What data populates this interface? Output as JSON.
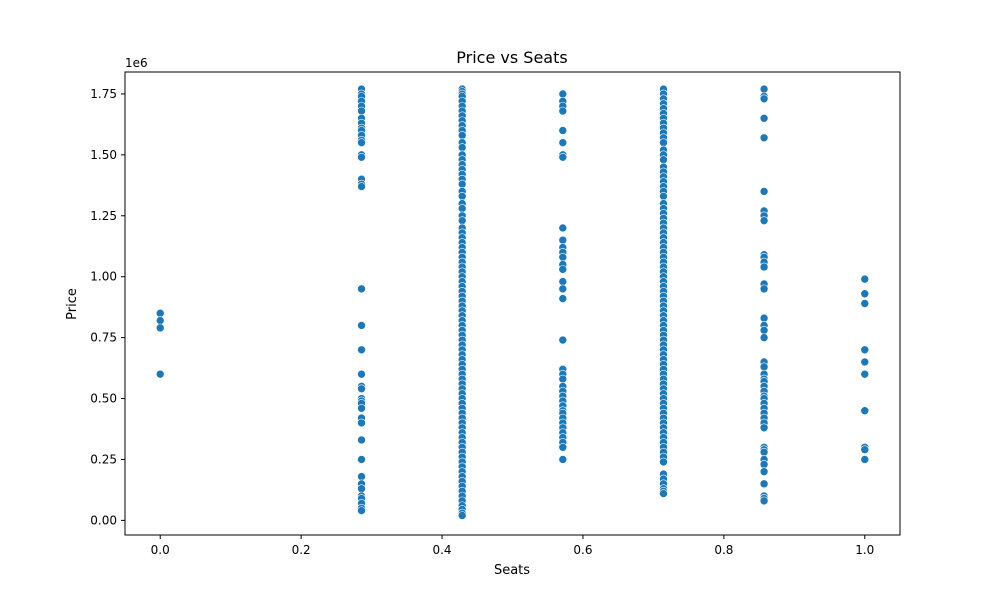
{
  "chart_data": {
    "type": "scatter",
    "title": "Price vs Seats",
    "xlabel": "Seats",
    "ylabel": "Price",
    "y_offset_label": "1e6",
    "xlim": [
      -0.05,
      1.05
    ],
    "ylim": [
      -60000,
      1840000
    ],
    "x_ticks": [
      0.0,
      0.2,
      0.4,
      0.6,
      0.8,
      1.0
    ],
    "x_tick_labels": [
      "0.0",
      "0.2",
      "0.4",
      "0.6",
      "0.8",
      "1.0"
    ],
    "y_ticks": [
      0,
      250000,
      500000,
      750000,
      1000000,
      1250000,
      1500000,
      1750000
    ],
    "y_tick_labels": [
      "0.00",
      "0.25",
      "0.50",
      "0.75",
      "1.00",
      "1.25",
      "1.50",
      "1.75"
    ],
    "grid": false,
    "marker_color": "#1f77b4",
    "series": [
      {
        "x": 0.0,
        "y": [
          850000,
          820000,
          790000,
          600000
        ]
      },
      {
        "x": 0.2857,
        "y": [
          1770000,
          1750000,
          1740000,
          1720000,
          1700000,
          1680000,
          1650000,
          1630000,
          1610000,
          1600000,
          1580000,
          1560000,
          1550000,
          1500000,
          1490000,
          1400000,
          1380000,
          1370000,
          950000,
          800000,
          700000,
          600000,
          550000,
          540000,
          500000,
          490000,
          480000,
          460000,
          420000,
          400000,
          330000,
          250000,
          180000,
          150000,
          130000,
          100000,
          90000,
          70000,
          50000,
          40000
        ]
      },
      {
        "x": 0.4286,
        "y": [
          1770000,
          1760000,
          1750000,
          1740000,
          1720000,
          1700000,
          1680000,
          1660000,
          1640000,
          1620000,
          1600000,
          1580000,
          1550000,
          1530000,
          1500000,
          1480000,
          1460000,
          1440000,
          1420000,
          1400000,
          1380000,
          1350000,
          1330000,
          1300000,
          1280000,
          1250000,
          1230000,
          1200000,
          1180000,
          1160000,
          1140000,
          1120000,
          1100000,
          1080000,
          1060000,
          1040000,
          1020000,
          1000000,
          980000,
          960000,
          940000,
          920000,
          900000,
          880000,
          860000,
          840000,
          820000,
          800000,
          780000,
          760000,
          740000,
          720000,
          700000,
          680000,
          660000,
          640000,
          620000,
          600000,
          580000,
          560000,
          540000,
          520000,
          500000,
          480000,
          460000,
          440000,
          420000,
          400000,
          380000,
          360000,
          340000,
          320000,
          300000,
          280000,
          260000,
          240000,
          220000,
          200000,
          180000,
          160000,
          140000,
          120000,
          100000,
          80000,
          60000,
          45000,
          30000,
          20000
        ]
      },
      {
        "x": 0.5714,
        "y": [
          1750000,
          1720000,
          1700000,
          1680000,
          1600000,
          1550000,
          1500000,
          1490000,
          1200000,
          1150000,
          1120000,
          1100000,
          1080000,
          1050000,
          1030000,
          980000,
          950000,
          910000,
          740000,
          620000,
          600000,
          580000,
          550000,
          530000,
          510000,
          490000,
          470000,
          450000,
          440000,
          420000,
          400000,
          380000,
          360000,
          340000,
          320000,
          300000,
          250000
        ]
      },
      {
        "x": 0.7143,
        "y": [
          1770000,
          1750000,
          1730000,
          1710000,
          1690000,
          1670000,
          1650000,
          1630000,
          1610000,
          1590000,
          1570000,
          1550000,
          1520000,
          1500000,
          1480000,
          1450000,
          1430000,
          1410000,
          1390000,
          1370000,
          1350000,
          1330000,
          1300000,
          1280000,
          1260000,
          1240000,
          1220000,
          1200000,
          1180000,
          1160000,
          1140000,
          1120000,
          1100000,
          1080000,
          1060000,
          1040000,
          1020000,
          1000000,
          980000,
          960000,
          940000,
          920000,
          900000,
          880000,
          860000,
          840000,
          820000,
          800000,
          780000,
          760000,
          740000,
          720000,
          700000,
          680000,
          660000,
          640000,
          620000,
          600000,
          580000,
          560000,
          540000,
          520000,
          500000,
          480000,
          460000,
          440000,
          420000,
          400000,
          380000,
          360000,
          340000,
          320000,
          300000,
          280000,
          260000,
          240000,
          190000,
          170000,
          150000,
          130000,
          120000,
          110000
        ]
      },
      {
        "x": 0.8571,
        "y": [
          1770000,
          1740000,
          1730000,
          1650000,
          1570000,
          1350000,
          1270000,
          1250000,
          1230000,
          1090000,
          1080000,
          1060000,
          1040000,
          970000,
          950000,
          830000,
          800000,
          780000,
          750000,
          650000,
          630000,
          600000,
          580000,
          570000,
          550000,
          530000,
          510000,
          500000,
          480000,
          460000,
          440000,
          420000,
          400000,
          380000,
          300000,
          290000,
          280000,
          250000,
          230000,
          200000,
          150000,
          100000,
          90000,
          80000
        ]
      },
      {
        "x": 1.0,
        "y": [
          990000,
          930000,
          890000,
          700000,
          650000,
          600000,
          450000,
          300000,
          290000,
          250000
        ]
      }
    ]
  }
}
